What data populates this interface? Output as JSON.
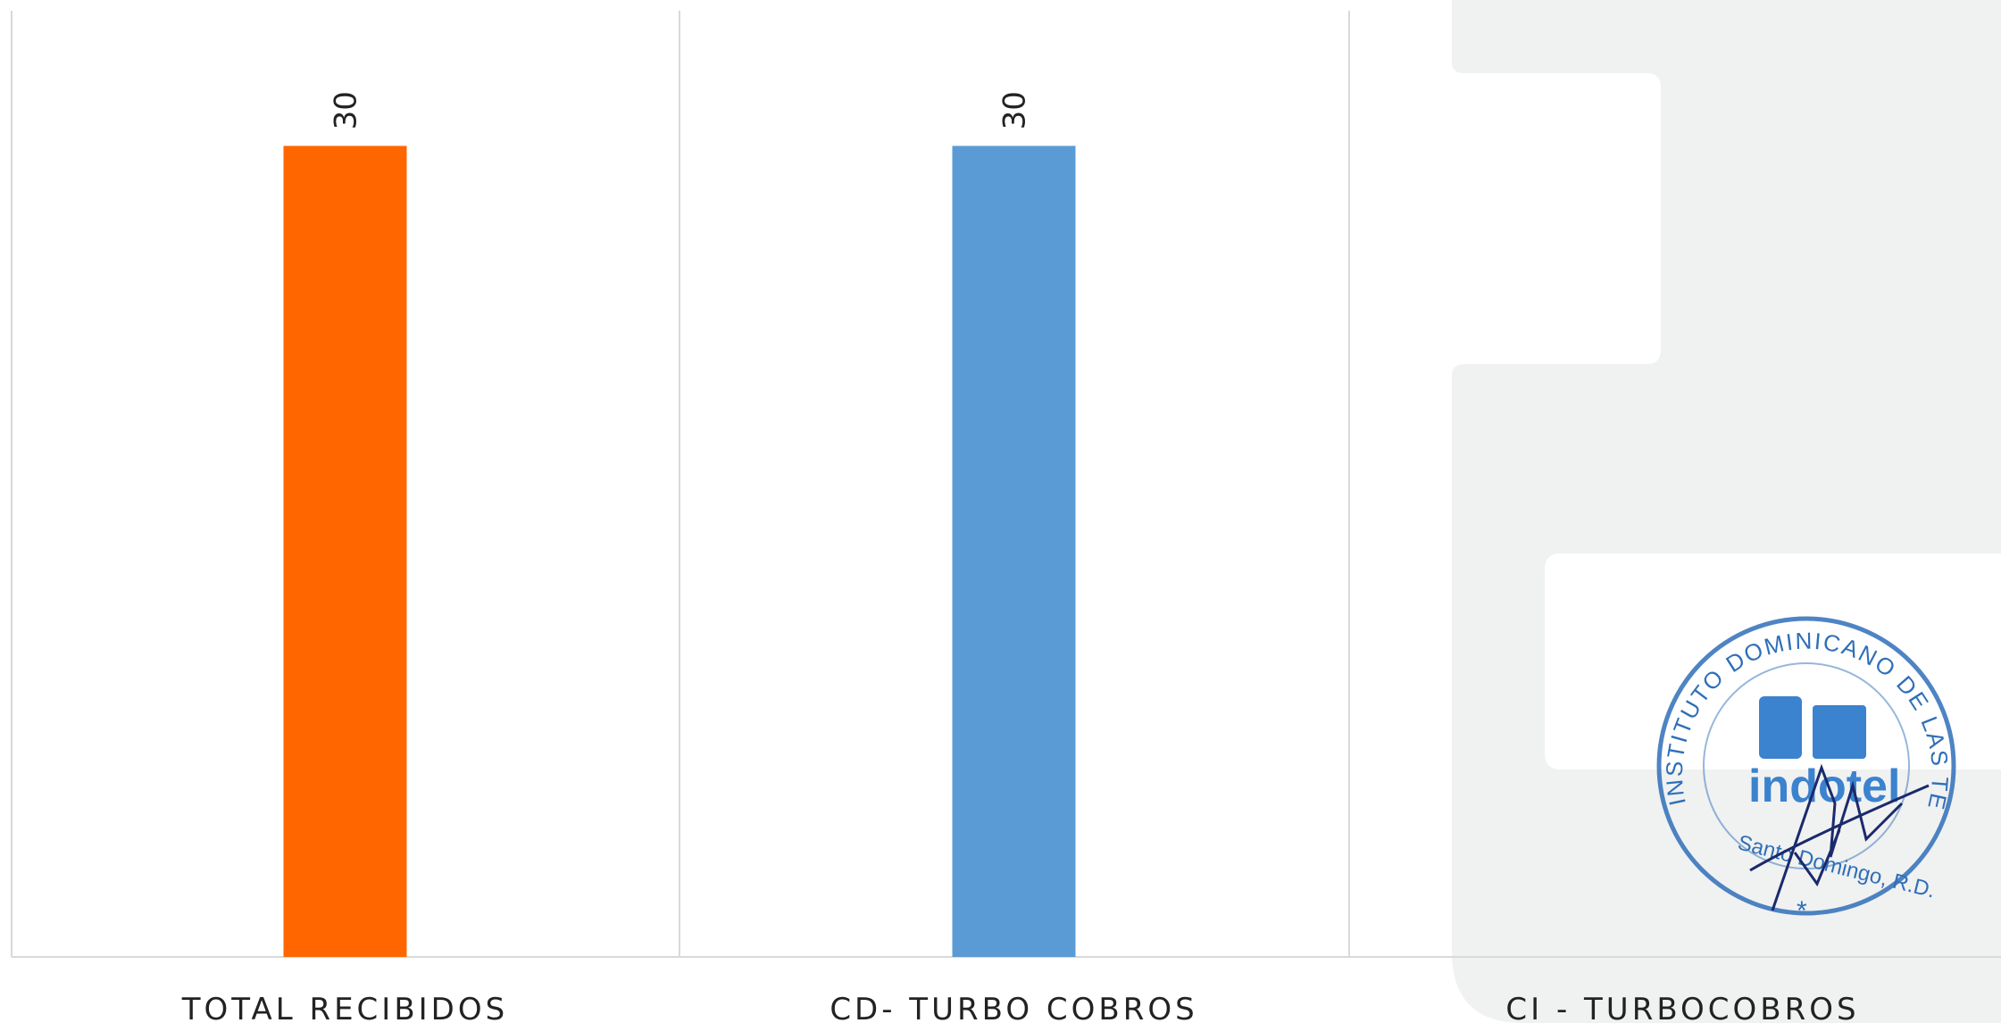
{
  "chart_data": {
    "type": "bar",
    "categories": [
      "TOTAL RECIBIDOS",
      "CD- TURBO COBROS",
      "CI - TURBOCOBROS"
    ],
    "values": [
      30,
      30,
      null
    ],
    "data_labels": [
      "30",
      "30",
      ""
    ],
    "bar_colors": [
      "#ff6600",
      "#5b9bd5",
      "#a5a5a5"
    ],
    "ylim": [
      0,
      35
    ],
    "grid": false,
    "legend": "none"
  },
  "seal": {
    "ring_text": "INSTITUTO DOMINICANO DE LAS TELECOMUNICACIONES",
    "logo_text": "indotel",
    "city_text": "Santo Domingo, R.D.",
    "color": "#2f6fb8"
  },
  "watermark": {
    "color": "#f0f1f1"
  }
}
